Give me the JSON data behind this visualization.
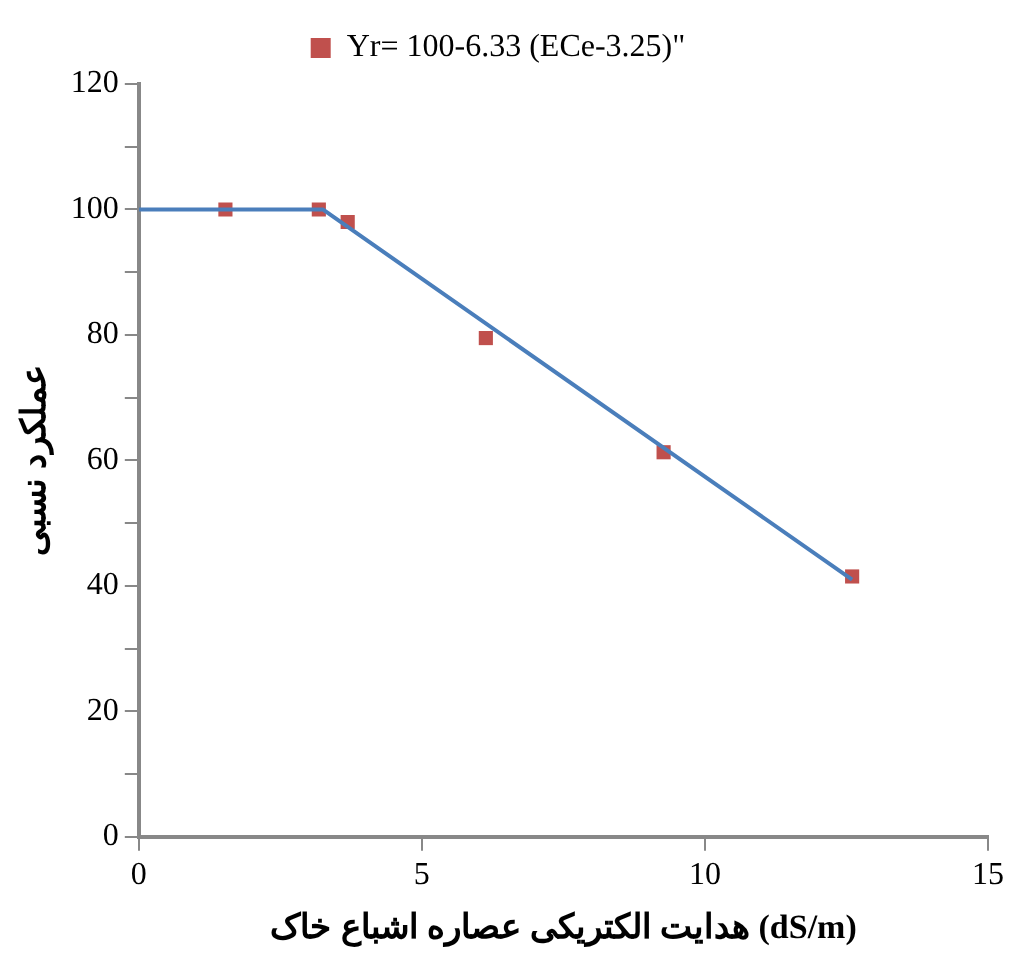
{
  "chart_data": {
    "type": "scatter",
    "xlabel": "هدایت الکتریکی عصاره اشباع خاک (dS/m)",
    "ylabel": "عملکرد نسبی",
    "series": [
      {
        "type": "line",
        "color": "#4a7ebb",
        "x": [
          0,
          3.25,
          12.6
        ],
        "values": [
          100,
          100,
          41
        ],
        "marker": "none"
      },
      {
        "name": "Yr= 100-6.33 (ECe-3.25)\"",
        "color": "#c0504d",
        "marker": "square",
        "x": [
          1.53,
          3.18,
          3.69,
          6.13,
          9.27,
          12.6
        ],
        "values": [
          100,
          100,
          98,
          79.5,
          61.3,
          41.5
        ]
      }
    ],
    "xlim": [
      0,
      15
    ],
    "xticks": [
      0,
      5,
      10,
      15
    ],
    "ylim": [
      0,
      120
    ],
    "yticks": [
      0,
      {
        "value": 10,
        "label": null
      },
      20,
      {
        "value": 30,
        "label": null
      },
      40,
      {
        "value": 50,
        "label": null
      },
      60,
      {
        "value": 70,
        "label": null
      },
      80,
      {
        "value": 90,
        "label": null
      },
      100,
      {
        "value": 110,
        "label": null
      },
      120
    ],
    "grid": false,
    "legend": "top"
  }
}
